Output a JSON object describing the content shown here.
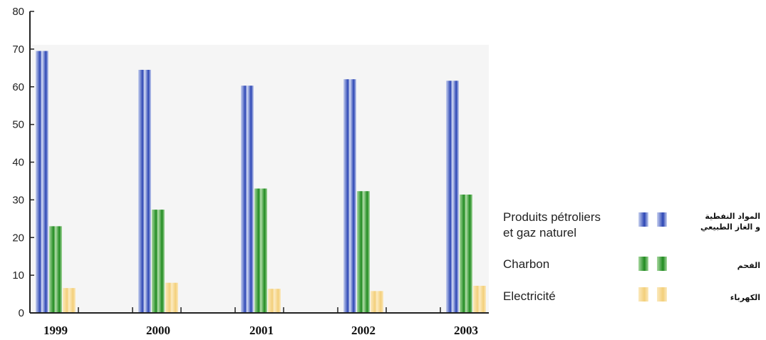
{
  "chart_data": {
    "type": "bar",
    "categories": [
      "1999",
      "2000",
      "2001",
      "2002",
      "2003"
    ],
    "series": [
      {
        "name_fr_line1": "Produits pétroliers",
        "name_fr_line2": "et gaz naturel",
        "name_ar_line1": "المواد النفطية",
        "name_ar_line2": "و الغاز الطبيعي",
        "values": [
          69.5,
          64.5,
          60.3,
          62.0,
          61.6
        ],
        "color_light": "#c9d2f0",
        "color_dark": "#2b45b4"
      },
      {
        "name_fr_line1": "Charbon",
        "name_ar_line1": "الفحم",
        "values": [
          23.0,
          27.4,
          33.0,
          32.3,
          31.4
        ],
        "color_light": "#a8d8a0",
        "color_dark": "#1f8a1f"
      },
      {
        "name_fr_line1": "Electricité",
        "name_ar_line1": "الكهرباء",
        "values": [
          6.6,
          8.0,
          6.4,
          5.8,
          7.2
        ],
        "color_light": "#fbe9bd",
        "color_dark": "#f3cf7a"
      }
    ],
    "yticks": [
      "0",
      "10",
      "20",
      "30",
      "40",
      "50",
      "60",
      "70",
      "80"
    ],
    "ylim": [
      0,
      80
    ],
    "legend_position": "right",
    "grid": false,
    "plot_background": "#f5f5f5"
  }
}
